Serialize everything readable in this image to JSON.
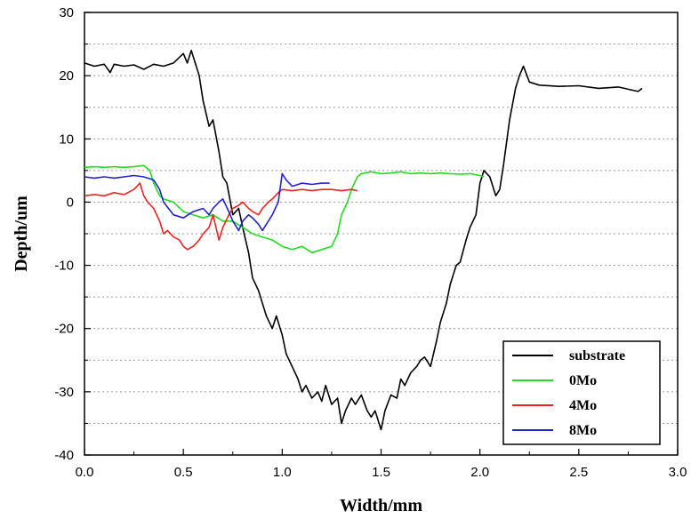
{
  "chart_data": {
    "type": "line",
    "xlabel": "Width/mm",
    "ylabel": "Depth/um",
    "xlim": [
      0,
      3.0
    ],
    "ylim": [
      -40,
      30
    ],
    "x_ticks": [
      0,
      0.5,
      1.0,
      1.5,
      2.0,
      2.5,
      3.0
    ],
    "x_tick_labels": [
      "0.0",
      "0.5",
      "1.0",
      "1.5",
      "2.0",
      "2.5",
      "3.0"
    ],
    "y_ticks": [
      -40,
      -30,
      -20,
      -10,
      0,
      10,
      20,
      30
    ],
    "y_tick_labels": [
      "-40",
      "-30",
      "-20",
      "-10",
      "0",
      "10",
      "20",
      "30"
    ],
    "grid": true,
    "legend_position": "bottom-right",
    "series": [
      {
        "name": "substrate",
        "color": "#000000",
        "x": [
          0.0,
          0.05,
          0.1,
          0.13,
          0.15,
          0.2,
          0.25,
          0.3,
          0.35,
          0.4,
          0.45,
          0.5,
          0.52,
          0.54,
          0.56,
          0.58,
          0.6,
          0.63,
          0.65,
          0.68,
          0.7,
          0.72,
          0.75,
          0.78,
          0.8,
          0.83,
          0.85,
          0.88,
          0.9,
          0.92,
          0.95,
          0.97,
          1.0,
          1.02,
          1.05,
          1.08,
          1.1,
          1.12,
          1.15,
          1.18,
          1.2,
          1.22,
          1.25,
          1.28,
          1.3,
          1.32,
          1.35,
          1.37,
          1.4,
          1.43,
          1.45,
          1.47,
          1.5,
          1.52,
          1.55,
          1.58,
          1.6,
          1.62,
          1.65,
          1.68,
          1.7,
          1.72,
          1.75,
          1.78,
          1.8,
          1.83,
          1.85,
          1.88,
          1.9,
          1.93,
          1.95,
          1.98,
          2.0,
          2.02,
          2.05,
          2.08,
          2.1,
          2.12,
          2.15,
          2.18,
          2.2,
          2.22,
          2.25,
          2.3,
          2.4,
          2.5,
          2.6,
          2.7,
          2.8,
          2.82
        ],
        "values": [
          22.0,
          21.5,
          21.8,
          20.5,
          21.8,
          21.5,
          21.7,
          21.0,
          21.8,
          21.5,
          22.0,
          23.5,
          22.0,
          24.0,
          22.0,
          20.0,
          16.0,
          12.0,
          13.0,
          8.0,
          4.0,
          3.0,
          -2.0,
          -1.0,
          -4.0,
          -8.0,
          -12.0,
          -14.0,
          -16.0,
          -18.0,
          -20.0,
          -18.0,
          -21.0,
          -24.0,
          -26.0,
          -28.0,
          -30.0,
          -29.0,
          -31.0,
          -30.0,
          -31.5,
          -29.0,
          -32.0,
          -31.0,
          -35.0,
          -33.0,
          -31.0,
          -32.0,
          -30.5,
          -33.0,
          -34.0,
          -33.0,
          -36.0,
          -33.0,
          -30.5,
          -31.0,
          -28.0,
          -29.0,
          -27.0,
          -26.0,
          -25.0,
          -24.5,
          -26.0,
          -22.0,
          -19.0,
          -16.0,
          -13.0,
          -10.0,
          -9.5,
          -6.0,
          -4.0,
          -2.0,
          3.0,
          5.0,
          4.0,
          1.0,
          2.0,
          6.0,
          13.0,
          18.0,
          20.0,
          21.5,
          19.0,
          18.5,
          18.3,
          18.4,
          18.0,
          18.2,
          17.5,
          18.0
        ]
      },
      {
        "name": "0Mo",
        "color": "#22dd22",
        "x": [
          0.0,
          0.05,
          0.1,
          0.15,
          0.2,
          0.25,
          0.3,
          0.33,
          0.35,
          0.38,
          0.4,
          0.45,
          0.5,
          0.55,
          0.6,
          0.65,
          0.7,
          0.75,
          0.8,
          0.85,
          0.9,
          0.95,
          1.0,
          1.05,
          1.1,
          1.15,
          1.2,
          1.25,
          1.28,
          1.3,
          1.33,
          1.35,
          1.38,
          1.4,
          1.45,
          1.5,
          1.55,
          1.6,
          1.65,
          1.7,
          1.75,
          1.8,
          1.85,
          1.9,
          1.95,
          2.0,
          2.02
        ],
        "values": [
          5.5,
          5.6,
          5.5,
          5.6,
          5.5,
          5.6,
          5.8,
          5.0,
          3.0,
          1.0,
          0.5,
          0.0,
          -1.5,
          -2.0,
          -2.5,
          -2.0,
          -3.0,
          -3.0,
          -4.0,
          -5.0,
          -5.5,
          -6.0,
          -7.0,
          -7.5,
          -7.0,
          -8.0,
          -7.5,
          -7.0,
          -5.0,
          -2.0,
          0.0,
          2.0,
          4.0,
          4.5,
          4.8,
          4.5,
          4.6,
          4.8,
          4.5,
          4.6,
          4.5,
          4.6,
          4.5,
          4.4,
          4.5,
          4.2,
          4.0
        ]
      },
      {
        "name": "4Mo",
        "color": "#ee2222",
        "x": [
          0.0,
          0.05,
          0.1,
          0.15,
          0.2,
          0.25,
          0.28,
          0.3,
          0.32,
          0.35,
          0.38,
          0.4,
          0.42,
          0.45,
          0.48,
          0.5,
          0.52,
          0.55,
          0.58,
          0.6,
          0.63,
          0.65,
          0.68,
          0.7,
          0.73,
          0.75,
          0.78,
          0.8,
          0.83,
          0.85,
          0.88,
          0.9,
          0.93,
          0.95,
          0.98,
          1.0,
          1.05,
          1.1,
          1.15,
          1.2,
          1.25,
          1.3,
          1.35,
          1.38
        ],
        "values": [
          1.0,
          1.2,
          1.0,
          1.5,
          1.2,
          2.0,
          3.0,
          1.0,
          0.0,
          -1.0,
          -3.0,
          -5.0,
          -4.5,
          -5.5,
          -6.0,
          -7.0,
          -7.5,
          -7.0,
          -6.0,
          -5.0,
          -4.0,
          -2.0,
          -6.0,
          -4.0,
          -2.0,
          -1.0,
          -0.5,
          0.0,
          -1.0,
          -1.5,
          -2.0,
          -1.0,
          0.0,
          0.5,
          1.5,
          2.0,
          1.8,
          2.0,
          1.8,
          2.0,
          2.0,
          1.8,
          2.0,
          1.8
        ]
      },
      {
        "name": "8Mo",
        "color": "#2222cc",
        "x": [
          0.0,
          0.05,
          0.1,
          0.15,
          0.2,
          0.25,
          0.3,
          0.35,
          0.38,
          0.4,
          0.45,
          0.5,
          0.55,
          0.6,
          0.63,
          0.65,
          0.68,
          0.7,
          0.73,
          0.75,
          0.78,
          0.8,
          0.83,
          0.85,
          0.88,
          0.9,
          0.93,
          0.95,
          0.98,
          1.0,
          1.02,
          1.05,
          1.1,
          1.15,
          1.2,
          1.24
        ],
        "values": [
          4.0,
          3.8,
          4.0,
          3.8,
          4.0,
          4.2,
          4.0,
          3.5,
          2.0,
          0.0,
          -2.0,
          -2.5,
          -1.5,
          -1.0,
          -2.0,
          -1.0,
          0.0,
          0.5,
          -1.5,
          -3.0,
          -4.5,
          -3.0,
          -2.0,
          -2.5,
          -3.5,
          -4.5,
          -3.0,
          -2.0,
          0.0,
          4.5,
          3.5,
          2.5,
          3.0,
          2.8,
          3.0,
          3.0
        ]
      }
    ]
  }
}
